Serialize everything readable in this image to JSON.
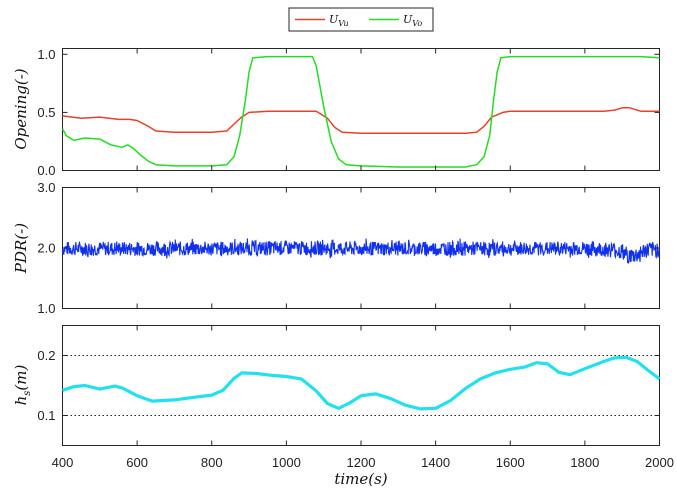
{
  "chart_data": [
    {
      "type": "line",
      "ylabel": "Opening(-)",
      "ylim": [
        0,
        1.05
      ],
      "yticks": [
        0,
        0.5,
        1
      ],
      "ytick_labels": [
        "0.0",
        "0.5",
        "1.0"
      ],
      "xlim": [
        400,
        2000
      ],
      "legend": {
        "placement": "top-center",
        "entries": [
          "U_Vu",
          "U_Vo"
        ]
      },
      "series": [
        {
          "name": "U_Vu",
          "color": "#e8412b",
          "x": [
            400,
            450,
            500,
            550,
            580,
            600,
            630,
            650,
            700,
            750,
            800,
            840,
            860,
            880,
            900,
            950,
            1000,
            1050,
            1080,
            1110,
            1130,
            1150,
            1200,
            1300,
            1400,
            1480,
            1510,
            1530,
            1550,
            1580,
            1600,
            1700,
            1800,
            1850,
            1880,
            1900,
            1920,
            1950,
            2000
          ],
          "y": [
            0.47,
            0.45,
            0.46,
            0.44,
            0.44,
            0.43,
            0.38,
            0.34,
            0.33,
            0.33,
            0.33,
            0.34,
            0.4,
            0.46,
            0.5,
            0.51,
            0.51,
            0.51,
            0.51,
            0.45,
            0.37,
            0.33,
            0.32,
            0.32,
            0.32,
            0.32,
            0.33,
            0.38,
            0.46,
            0.5,
            0.51,
            0.51,
            0.51,
            0.51,
            0.52,
            0.54,
            0.54,
            0.51,
            0.51
          ]
        },
        {
          "name": "U_Vo",
          "color": "#22dd22",
          "x": [
            400,
            410,
            430,
            460,
            500,
            530,
            560,
            575,
            590,
            610,
            630,
            650,
            700,
            800,
            840,
            860,
            875,
            890,
            900,
            910,
            950,
            1000,
            1050,
            1070,
            1080,
            1100,
            1120,
            1140,
            1160,
            1200,
            1300,
            1400,
            1480,
            1510,
            1530,
            1545,
            1555,
            1565,
            1575,
            1600,
            1700,
            1800,
            1900,
            1950,
            2000
          ],
          "y": [
            0.36,
            0.3,
            0.26,
            0.28,
            0.27,
            0.22,
            0.2,
            0.22,
            0.19,
            0.13,
            0.08,
            0.05,
            0.04,
            0.04,
            0.05,
            0.12,
            0.3,
            0.6,
            0.85,
            0.97,
            0.98,
            0.98,
            0.98,
            0.98,
            0.9,
            0.55,
            0.25,
            0.1,
            0.05,
            0.04,
            0.03,
            0.03,
            0.03,
            0.05,
            0.12,
            0.3,
            0.6,
            0.85,
            0.97,
            0.98,
            0.98,
            0.98,
            0.98,
            0.98,
            0.97
          ]
        }
      ]
    },
    {
      "type": "line",
      "ylabel": "PDR(-)",
      "ylim": [
        1.0,
        3.0
      ],
      "yticks": [
        1,
        2,
        3
      ],
      "ytick_labels": [
        "1.0",
        "2.0",
        "3.0"
      ],
      "xlim": [
        400,
        2000
      ],
      "series": [
        {
          "color": "#1030ee",
          "x": [
            400,
            600,
            800,
            1000,
            1200,
            1400,
            1600,
            1800,
            1880,
            1900,
            1920,
            1940,
            1960,
            2000
          ],
          "y_center": [
            1.99,
            1.99,
            1.99,
            2.0,
            1.99,
            1.99,
            1.99,
            1.99,
            1.97,
            1.93,
            1.86,
            1.88,
            1.95,
            1.98
          ],
          "y_amplitude": [
            0.14,
            0.14,
            0.14,
            0.14,
            0.14,
            0.14,
            0.14,
            0.14,
            0.15,
            0.17,
            0.16,
            0.18,
            0.16,
            0.16
          ]
        }
      ]
    },
    {
      "type": "line",
      "ylabel": "h_s(m)",
      "xlabel": "time(s)",
      "ylim": [
        0.05,
        0.25
      ],
      "yticks": [
        0.1,
        0.2
      ],
      "ytick_labels": [
        "0.1",
        "0.2"
      ],
      "xlim": [
        400,
        2000
      ],
      "xticks": [
        400,
        600,
        800,
        1000,
        1200,
        1400,
        1600,
        1800,
        2000
      ],
      "xtick_labels": [
        "400",
        "600",
        "800",
        "1000",
        "1200",
        "1400",
        "1600",
        "1800",
        "2000"
      ],
      "grid_lines_y": [
        0.1,
        0.2
      ],
      "series": [
        {
          "color": "#22e0ee",
          "x": [
            400,
            430,
            460,
            500,
            540,
            560,
            600,
            640,
            700,
            760,
            800,
            830,
            860,
            880,
            920,
            960,
            1000,
            1040,
            1080,
            1110,
            1140,
            1170,
            1200,
            1240,
            1280,
            1320,
            1360,
            1400,
            1440,
            1480,
            1520,
            1560,
            1600,
            1640,
            1670,
            1700,
            1730,
            1760,
            1800,
            1850,
            1880,
            1910,
            1940,
            1970,
            2000
          ],
          "y": [
            0.142,
            0.148,
            0.15,
            0.144,
            0.149,
            0.146,
            0.133,
            0.124,
            0.126,
            0.131,
            0.134,
            0.142,
            0.162,
            0.171,
            0.17,
            0.167,
            0.165,
            0.161,
            0.141,
            0.12,
            0.112,
            0.121,
            0.133,
            0.136,
            0.128,
            0.117,
            0.111,
            0.112,
            0.125,
            0.145,
            0.161,
            0.171,
            0.177,
            0.181,
            0.188,
            0.186,
            0.172,
            0.168,
            0.178,
            0.19,
            0.196,
            0.197,
            0.19,
            0.175,
            0.161
          ]
        }
      ]
    }
  ]
}
